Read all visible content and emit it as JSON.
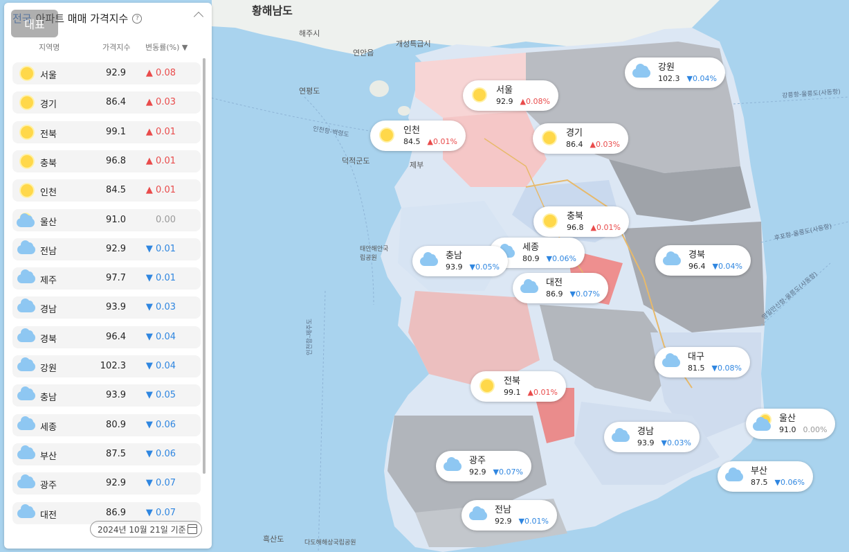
{
  "panel": {
    "title_prefix": "전국",
    "title_suffix": "아파트 매매 가격지수",
    "badge": "대표",
    "help_glyph": "?",
    "col_region": "지역명",
    "col_index": "가격지수",
    "col_change": "변동률(%) ▼",
    "date": "2024년 10월 21일 기준",
    "rows": [
      {
        "name": "서울",
        "value": "92.9",
        "change": "▲ 0.08",
        "dir": "up",
        "weather": "sun"
      },
      {
        "name": "경기",
        "value": "86.4",
        "change": "▲ 0.03",
        "dir": "up",
        "weather": "sun"
      },
      {
        "name": "전북",
        "value": "99.1",
        "change": "▲ 0.01",
        "dir": "up",
        "weather": "sun"
      },
      {
        "name": "충북",
        "value": "96.8",
        "change": "▲ 0.01",
        "dir": "up",
        "weather": "sun"
      },
      {
        "name": "인천",
        "value": "84.5",
        "change": "▲ 0.01",
        "dir": "up",
        "weather": "sun"
      },
      {
        "name": "울산",
        "value": "91.0",
        "change": "0.00",
        "dir": "flat",
        "weather": "partly"
      },
      {
        "name": "전남",
        "value": "92.9",
        "change": "▼ 0.01",
        "dir": "down",
        "weather": "cloud"
      },
      {
        "name": "제주",
        "value": "97.7",
        "change": "▼ 0.01",
        "dir": "down",
        "weather": "cloud"
      },
      {
        "name": "경남",
        "value": "93.9",
        "change": "▼ 0.03",
        "dir": "down",
        "weather": "cloud"
      },
      {
        "name": "경북",
        "value": "96.4",
        "change": "▼ 0.04",
        "dir": "down",
        "weather": "cloud"
      },
      {
        "name": "강원",
        "value": "102.3",
        "change": "▼ 0.04",
        "dir": "down",
        "weather": "cloud"
      },
      {
        "name": "충남",
        "value": "93.9",
        "change": "▼ 0.05",
        "dir": "down",
        "weather": "cloud"
      },
      {
        "name": "세종",
        "value": "80.9",
        "change": "▼ 0.06",
        "dir": "down",
        "weather": "cloud"
      },
      {
        "name": "부산",
        "value": "87.5",
        "change": "▼ 0.06",
        "dir": "down",
        "weather": "cloud"
      },
      {
        "name": "광주",
        "value": "92.9",
        "change": "▼ 0.07",
        "dir": "down",
        "weather": "cloud"
      },
      {
        "name": "대전",
        "value": "86.9",
        "change": "▼ 0.07",
        "dir": "down",
        "weather": "cloud"
      }
    ]
  },
  "markers": [
    {
      "name": "서울",
      "value": "92.9",
      "change": "▲0.08%",
      "dir": "up",
      "weather": "sun"
    },
    {
      "name": "인천",
      "value": "84.5",
      "change": "▲0.01%",
      "dir": "up",
      "weather": "sun"
    },
    {
      "name": "경기",
      "value": "86.4",
      "change": "▲0.03%",
      "dir": "up",
      "weather": "sun"
    },
    {
      "name": "강원",
      "value": "102.3",
      "change": "▼0.04%",
      "dir": "down",
      "weather": "cloud"
    },
    {
      "name": "충북",
      "value": "96.8",
      "change": "▲0.01%",
      "dir": "up",
      "weather": "sun"
    },
    {
      "name": "세종",
      "value": "80.9",
      "change": "▼0.06%",
      "dir": "down",
      "weather": "cloud"
    },
    {
      "name": "충남",
      "value": "93.9",
      "change": "▼0.05%",
      "dir": "down",
      "weather": "cloud"
    },
    {
      "name": "대전",
      "value": "86.9",
      "change": "▼0.07%",
      "dir": "down",
      "weather": "cloud"
    },
    {
      "name": "경북",
      "value": "96.4",
      "change": "▼0.04%",
      "dir": "down",
      "weather": "cloud"
    },
    {
      "name": "대구",
      "value": "81.5",
      "change": "▼0.08%",
      "dir": "down",
      "weather": "cloud"
    },
    {
      "name": "전북",
      "value": "99.1",
      "change": "▲0.01%",
      "dir": "up",
      "weather": "sun"
    },
    {
      "name": "울산",
      "value": "91.0",
      "change": "0.00%",
      "dir": "flat",
      "weather": "partly"
    },
    {
      "name": "경남",
      "value": "93.9",
      "change": "▼0.03%",
      "dir": "down",
      "weather": "cloud"
    },
    {
      "name": "광주",
      "value": "92.9",
      "change": "▼0.07%",
      "dir": "down",
      "weather": "cloud"
    },
    {
      "name": "부산",
      "value": "87.5",
      "change": "▼0.06%",
      "dir": "down",
      "weather": "cloud"
    },
    {
      "name": "전남",
      "value": "92.9",
      "change": "▼0.01%",
      "dir": "down",
      "weather": "cloud"
    }
  ],
  "map_labels": {
    "hwanghae": "황해남도",
    "haeju": "해주시",
    "yeonan": "연안읍",
    "gaeseong": "개성특급시",
    "yeonpyeong": "연평도",
    "deokjeok": "덕적군도",
    "jebu": "제부",
    "taean": "태안해안국립공원",
    "heuksan": "흑산도",
    "dadohae": "다도해해상국립공원",
    "incheon_route": "인천항-백령도",
    "incheon_jeju": "인천항-제주도",
    "gangneung_route": "강릉항-울릉도(사동항)",
    "hupo_route": "후포항-울릉도(사동항)",
    "yeongil_route": "영일만신항-울릉도(사동항)"
  },
  "colors": {
    "sea": "#a9d3ee",
    "up": "#e94b4b",
    "down": "#2f86e0",
    "flat": "#999999",
    "sun": "#ffd84a",
    "cloud": "#8ec7f2"
  }
}
